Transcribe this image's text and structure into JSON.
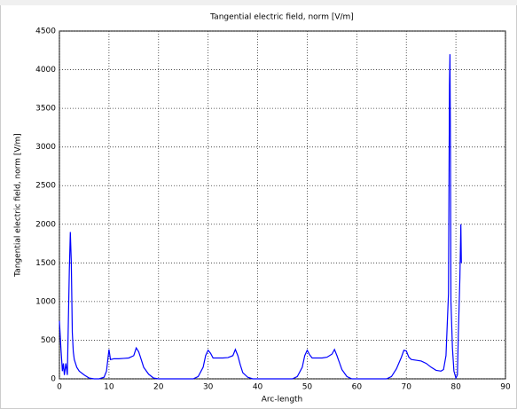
{
  "chart_data": {
    "type": "line",
    "title": "Tangential electric field, norm [V/m]",
    "xlabel": "Arc-length",
    "ylabel": "Tangential electric field, norm [V/m]",
    "x": [
      0,
      0.3,
      0.6,
      0.8,
      1.0,
      1.3,
      1.6,
      2.0,
      2.2,
      2.4,
      2.6,
      2.8,
      3.0,
      3.5,
      4,
      5,
      6,
      7,
      8,
      9,
      9.5,
      10,
      10.3,
      11,
      12,
      13,
      14,
      15,
      15.5,
      16,
      16.5,
      17,
      18,
      19,
      20,
      27,
      28,
      29,
      29.5,
      30,
      30.5,
      31,
      32,
      33,
      34,
      35,
      35.5,
      36,
      36.5,
      37,
      38,
      39,
      47,
      48,
      49,
      49.5,
      50,
      50.5,
      51,
      53,
      54,
      55,
      55.5,
      56,
      57,
      58,
      59,
      66,
      67,
      68,
      69,
      69.5,
      70,
      70.5,
      71,
      72,
      73,
      74,
      75,
      76,
      77,
      77.5,
      78,
      78.5,
      78.7,
      78.8,
      78.9,
      79,
      79.3,
      79.6,
      80,
      80.3,
      80.5,
      80.8,
      81,
      81.1
    ],
    "values": [
      750,
      400,
      100,
      200,
      50,
      200,
      50,
      1400,
      1900,
      1500,
      600,
      350,
      250,
      150,
      100,
      50,
      10,
      0,
      0,
      20,
      100,
      380,
      250,
      260,
      260,
      265,
      270,
      300,
      400,
      350,
      250,
      150,
      60,
      10,
      0,
      0,
      30,
      150,
      300,
      370,
      330,
      270,
      270,
      270,
      275,
      300,
      380,
      300,
      180,
      80,
      20,
      0,
      0,
      30,
      150,
      300,
      370,
      310,
      270,
      270,
      280,
      320,
      380,
      300,
      120,
      30,
      0,
      0,
      30,
      130,
      280,
      370,
      360,
      280,
      250,
      240,
      230,
      200,
      150,
      110,
      100,
      120,
      300,
      1100,
      3800,
      4200,
      3000,
      1000,
      400,
      100,
      10,
      50,
      600,
      1300,
      2000,
      1500
    ],
    "color": "#0000ff",
    "xlim": [
      0,
      90
    ],
    "xticks": [
      0,
      10,
      20,
      30,
      40,
      50,
      60,
      70,
      80,
      90
    ],
    "ylim": [
      0,
      4500
    ],
    "yticks": [
      0,
      500,
      1000,
      1500,
      2000,
      2500,
      3000,
      3500,
      4000,
      4500
    ],
    "grid": true
  }
}
